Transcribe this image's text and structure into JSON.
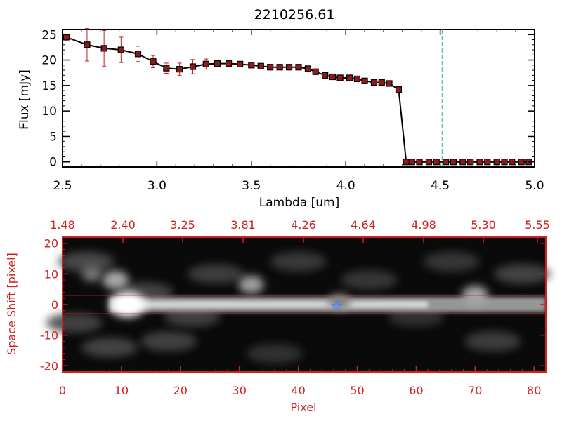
{
  "chart_data": [
    {
      "type": "line",
      "title": "2210256.61",
      "xlabel": "Lambda [um]",
      "ylabel": "Flux [mJy]",
      "xlim": [
        2.5,
        5.0
      ],
      "ylim": [
        -1,
        26
      ],
      "x_ticks": [
        "2.5",
        "3.0",
        "3.5",
        "4.0",
        "4.5",
        "5.0"
      ],
      "y_ticks": [
        "0",
        "5",
        "10",
        "15",
        "20",
        "25"
      ],
      "marker_line_color": "#000000",
      "marker_fill_color": "#8b1a1a",
      "error_color": "#c02020",
      "reference_line": {
        "x": 4.51,
        "color": "#3aa6a6"
      },
      "series": [
        {
          "x": [
            2.52,
            2.63,
            2.72,
            2.81,
            2.9,
            2.98,
            3.05,
            3.12,
            3.19,
            3.26,
            3.32,
            3.38,
            3.44,
            3.5,
            3.55,
            3.6,
            3.65,
            3.7,
            3.75,
            3.8,
            3.84,
            3.89,
            3.93,
            3.97,
            4.02,
            4.06,
            4.1,
            4.15,
            4.19,
            4.23,
            4.28,
            4.32,
            4.35,
            4.39,
            4.44,
            4.48,
            4.53,
            4.57,
            4.62,
            4.66,
            4.71,
            4.75,
            4.8,
            4.84,
            4.88,
            4.93,
            4.97
          ],
          "y": [
            24.5,
            23.0,
            22.3,
            22.0,
            21.2,
            19.7,
            18.4,
            18.2,
            18.7,
            19.2,
            19.3,
            19.3,
            19.2,
            19.0,
            18.8,
            18.6,
            18.6,
            18.6,
            18.6,
            18.3,
            17.7,
            17.0,
            16.7,
            16.5,
            16.5,
            16.3,
            15.9,
            15.6,
            15.6,
            15.4,
            14.2,
            0,
            0,
            0,
            0,
            0,
            0,
            0,
            0,
            0,
            0,
            0,
            0,
            0,
            0,
            0,
            0
          ],
          "err": [
            0.6,
            3.2,
            3.5,
            2.5,
            1.5,
            1.2,
            1.0,
            1.2,
            1.4,
            1.0,
            0.5,
            0.4,
            0.3,
            0.3,
            0.3,
            0.3,
            0.3,
            0.3,
            0.3,
            0.3,
            0.3,
            0.3,
            0.3,
            0.3,
            0.3,
            0.3,
            0.3,
            0.3,
            0.3,
            0.3,
            0.3,
            0,
            0,
            0,
            0,
            0,
            0,
            0,
            0,
            0,
            0,
            0,
            0,
            0,
            0,
            0,
            0
          ]
        }
      ]
    },
    {
      "type": "heatmap",
      "xlabel": "Pixel",
      "ylabel": "Space Shift [pixel]",
      "xlim": [
        0,
        82
      ],
      "ylim": [
        -22,
        22
      ],
      "x_ticks": [
        "0",
        "10",
        "20",
        "30",
        "40",
        "50",
        "60",
        "70",
        "80"
      ],
      "y_ticks": [
        "-20",
        "-10",
        "0",
        "10",
        "20"
      ],
      "top_axis_ticks": [
        "1.48",
        "2.40",
        "3.25",
        "3.81",
        "4.26",
        "4.64",
        "4.98",
        "5.30",
        "5.55"
      ],
      "axis_color": "#d02020",
      "aperture_lines_y": [
        3,
        -3
      ],
      "star_marker": {
        "x": 46.5,
        "y": -0.5,
        "color": "#3f88ff"
      },
      "bright_sources": [
        {
          "x": 11,
          "y": 0,
          "level": 1.0
        },
        {
          "x": 9,
          "y": 8,
          "level": 0.55
        },
        {
          "x": 32,
          "y": 6.5,
          "level": 0.5
        },
        {
          "x": 70,
          "y": 3,
          "level": 0.55
        },
        {
          "x": 47,
          "y": 1,
          "level": 0.35
        },
        {
          "x": 5,
          "y": 10,
          "level": 0.3
        }
      ],
      "trace": {
        "y": 0,
        "x_start": 8,
        "x_end": 82,
        "level": 0.55
      }
    }
  ]
}
